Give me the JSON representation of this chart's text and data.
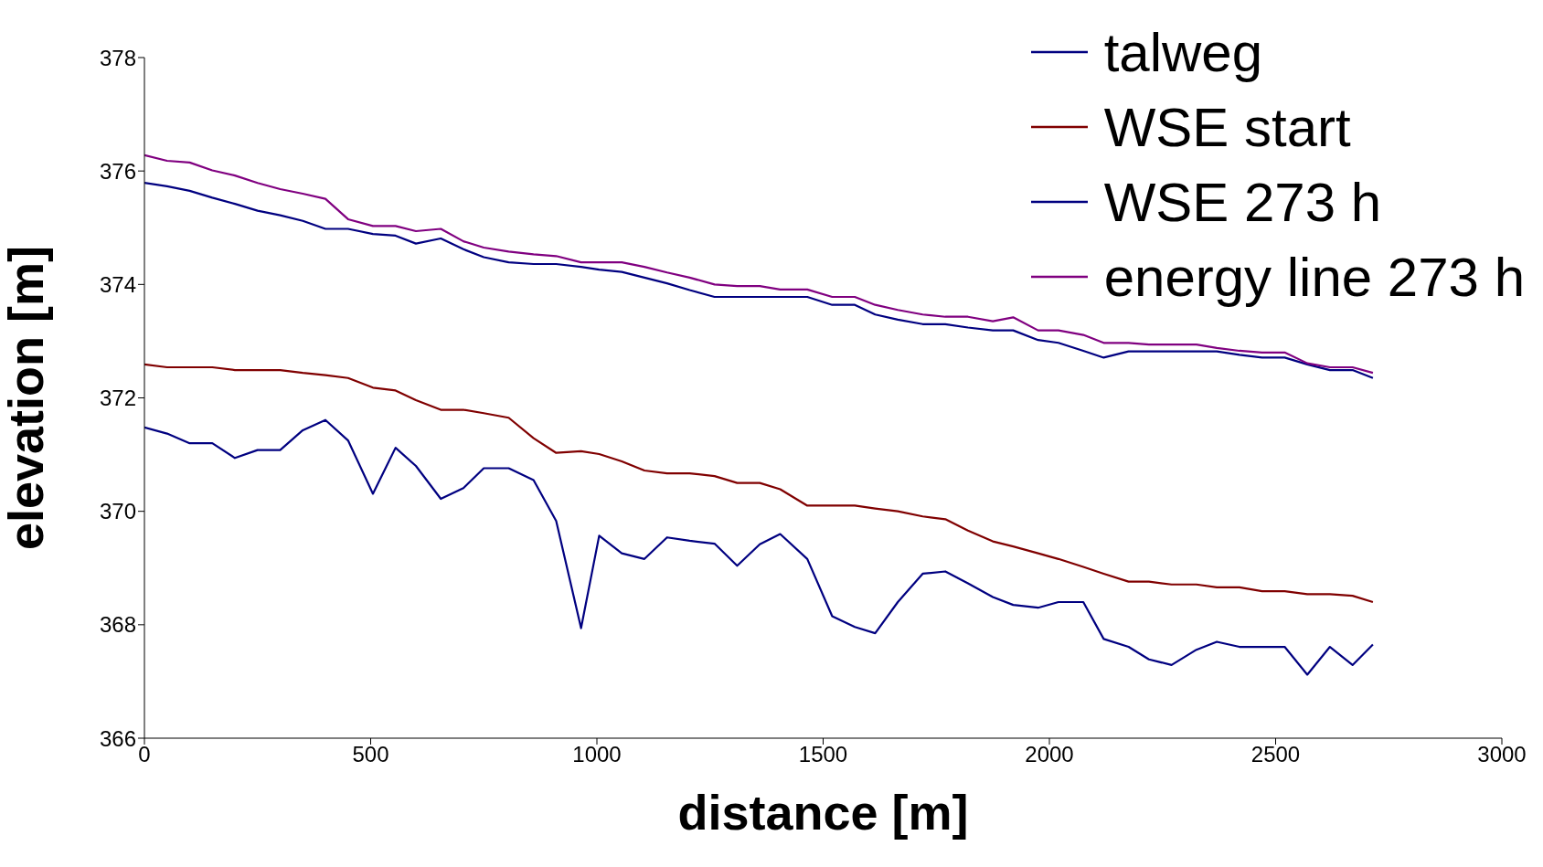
{
  "chart_data": {
    "type": "line",
    "xlabel": "distance [m]",
    "ylabel": "elevation [m]",
    "x": [
      0,
      50,
      100,
      150,
      200,
      250,
      300,
      350,
      400,
      450,
      505,
      555,
      600,
      655,
      705,
      750,
      805,
      860,
      910,
      965,
      1005,
      1055,
      1105,
      1155,
      1205,
      1260,
      1310,
      1360,
      1405,
      1465,
      1520,
      1570,
      1615,
      1665,
      1720,
      1770,
      1820,
      1875,
      1920,
      1975,
      2020,
      2075,
      2120,
      2175,
      2220,
      2270,
      2325,
      2370,
      2420,
      2470,
      2520,
      2570,
      2620,
      2670,
      2715
    ],
    "series": [
      {
        "name": "talweg",
        "color": "#000080",
        "values": [
          371.48,
          371.37,
          371.2,
          371.2,
          370.94,
          371.08,
          371.08,
          371.43,
          371.61,
          371.25,
          370.31,
          371.12,
          370.8,
          370.22,
          370.41,
          370.76,
          370.76,
          370.55,
          369.83,
          367.94,
          369.57,
          369.26,
          369.16,
          369.54,
          369.48,
          369.43,
          369.04,
          369.42,
          369.6,
          369.16,
          368.15,
          367.96,
          367.85,
          368.4,
          368.9,
          368.94,
          368.73,
          368.49,
          368.35,
          368.3,
          368.4,
          368.4,
          367.75,
          367.61,
          367.39,
          367.29,
          367.56,
          367.7,
          367.61,
          367.61,
          367.61,
          367.12,
          367.61,
          367.29,
          367.65
        ]
      },
      {
        "name": "WSE start",
        "color": "#800000",
        "values": [
          372.59,
          372.54,
          372.54,
          372.54,
          372.49,
          372.49,
          372.49,
          372.44,
          372.4,
          372.35,
          372.18,
          372.13,
          371.96,
          371.79,
          371.79,
          371.73,
          371.65,
          371.29,
          371.03,
          371.06,
          371.01,
          370.88,
          370.72,
          370.67,
          370.67,
          370.62,
          370.5,
          370.5,
          370.39,
          370.1,
          370.1,
          370.1,
          370.05,
          370.0,
          369.91,
          369.86,
          369.66,
          369.47,
          369.38,
          369.26,
          369.16,
          369.02,
          368.9,
          368.76,
          368.76,
          368.71,
          368.71,
          368.66,
          368.66,
          368.59,
          368.59,
          368.54,
          368.54,
          368.51,
          368.4
        ]
      },
      {
        "name": "WSE 273 h",
        "color": "#000080",
        "values": [
          375.79,
          375.73,
          375.65,
          375.53,
          375.42,
          375.3,
          375.22,
          375.12,
          374.98,
          374.98,
          374.89,
          374.86,
          374.72,
          374.81,
          374.62,
          374.48,
          374.39,
          374.36,
          374.36,
          374.31,
          374.26,
          374.22,
          374.12,
          374.02,
          373.9,
          373.78,
          373.78,
          373.78,
          373.78,
          373.78,
          373.64,
          373.64,
          373.47,
          373.38,
          373.3,
          373.3,
          373.24,
          373.19,
          373.19,
          373.02,
          372.97,
          372.83,
          372.71,
          372.82,
          372.82,
          372.82,
          372.82,
          372.82,
          372.76,
          372.71,
          372.71,
          372.59,
          372.49,
          372.49,
          372.35
        ]
      },
      {
        "name": "energy line 273 h",
        "color": "#800080",
        "values": [
          376.28,
          376.18,
          376.15,
          376.01,
          375.92,
          375.79,
          375.68,
          375.6,
          375.51,
          375.15,
          375.03,
          375.03,
          374.94,
          374.98,
          374.76,
          374.65,
          374.58,
          374.53,
          374.5,
          374.39,
          374.39,
          374.39,
          374.31,
          374.21,
          374.12,
          374.0,
          373.97,
          373.97,
          373.91,
          373.91,
          373.78,
          373.78,
          373.64,
          373.55,
          373.47,
          373.43,
          373.43,
          373.35,
          373.42,
          373.19,
          373.19,
          373.11,
          372.97,
          372.97,
          372.94,
          372.94,
          372.94,
          372.88,
          372.83,
          372.8,
          372.8,
          372.61,
          372.54,
          372.54,
          372.44
        ]
      }
    ],
    "xlim": [
      0,
      3000
    ],
    "xticks": [
      0,
      500,
      1000,
      1500,
      2000,
      2500,
      3000
    ],
    "ylim": [
      366,
      378
    ],
    "yticks": [
      366,
      368,
      370,
      372,
      374,
      376,
      378
    ],
    "grid": false,
    "legend": "top right",
    "marker": "none",
    "line_style": "solid"
  }
}
